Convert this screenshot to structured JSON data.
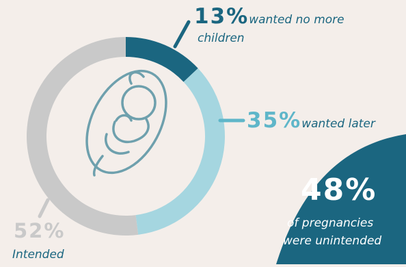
{
  "chart_data": {
    "type": "pie",
    "slices": [
      {
        "value": 13,
        "label": "13%",
        "text": "wanted no more children",
        "text_line1": "wanted no more",
        "text_line2": "children",
        "color": "#1b6680"
      },
      {
        "value": 35,
        "label": "35%",
        "text": "wanted later",
        "color": "#a5d6e0"
      },
      {
        "value": 52,
        "label": "52%",
        "text": "Intended",
        "color": "#c9c9c9"
      }
    ],
    "callout": {
      "value": 48,
      "label": "48%",
      "text_line1": "of pregnancies",
      "text_line2": "were unintended",
      "color": "#1b6680"
    },
    "center_icon": "fetus-icon"
  }
}
